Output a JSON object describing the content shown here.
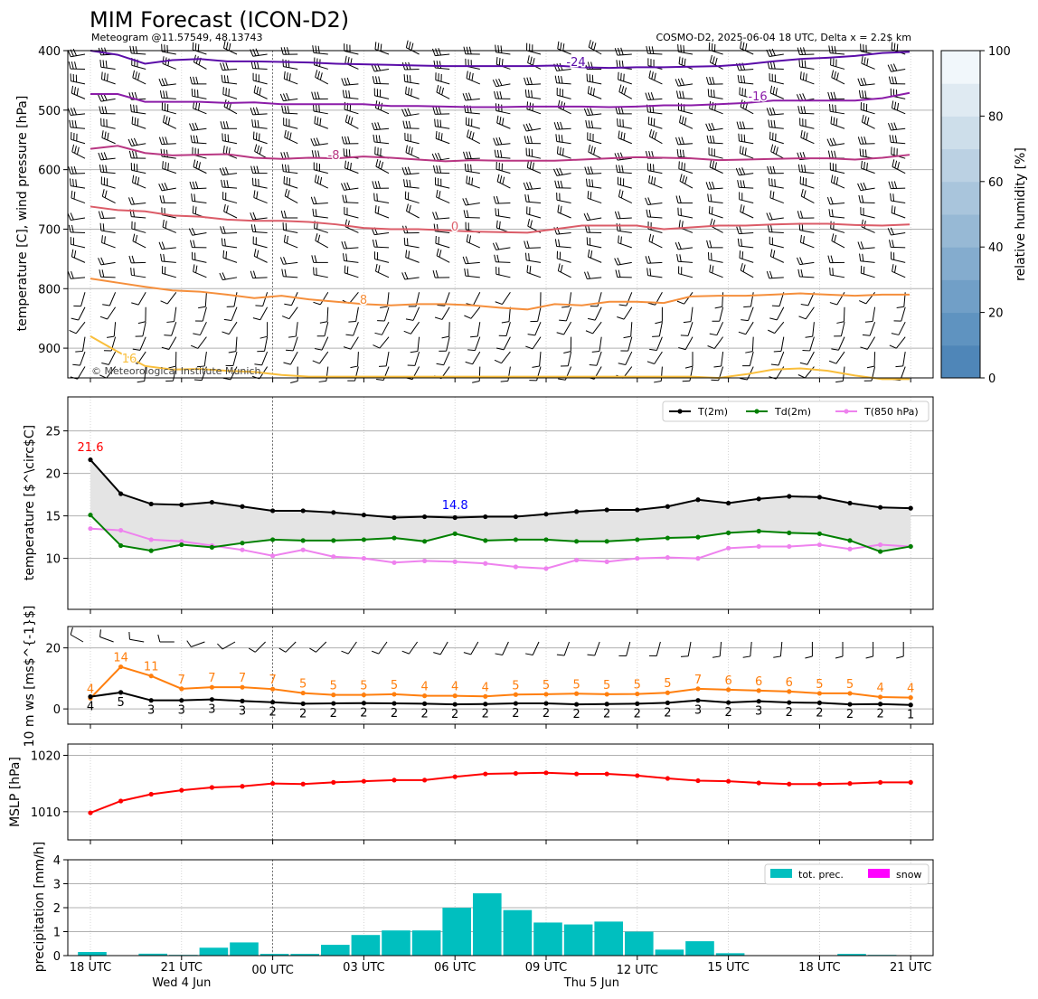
{
  "header": {
    "title": "MIM Forecast (ICON-D2)",
    "subtitle_left": "Meteogram @11.57549, 48.13743",
    "subtitle_right": "COSMO-D2, 2025-06-04 18 UTC, Delta x = 2.2$ km",
    "copyright": "© Meteorological Institute Munich"
  },
  "time_axis": {
    "ticks": [
      "18 UTC",
      "21 UTC",
      "00 UTC",
      "03 UTC",
      "06 UTC",
      "09 UTC",
      "12 UTC",
      "15 UTC",
      "18 UTC",
      "21 UTC"
    ],
    "date_labels": [
      "Wed 4 Jun",
      "Thu 5 Jun"
    ]
  },
  "colors": {
    "t2m": "#000000",
    "td2m": "#008000",
    "t850": "#ee82ee",
    "wind_speed": "#ff7f0e",
    "wind_gust": "#ff7f0e",
    "mslp": "#ff0000",
    "precip": "#00bfbf",
    "snow": "#ff00ff",
    "max_label": "#ff0000",
    "min_label": "#0000ff"
  },
  "chart_data": [
    {
      "type": "line",
      "name": "upper-air",
      "ylabel": "temperature [C], wind pressure [hPa]",
      "y_ticks": [
        "400",
        "500",
        "600",
        "700",
        "800",
        "900"
      ],
      "ylim": [
        950,
        400
      ],
      "isotherm_labels": [
        "-24",
        "-16",
        "-8",
        "0",
        "8",
        "16"
      ],
      "isotherms": [
        {
          "label": "-24",
          "color": "#5a0ca8",
          "values": [
            400,
            407,
            422,
            416,
            414,
            418,
            418,
            419,
            420,
            422,
            423,
            424,
            425,
            426,
            426,
            426,
            426,
            425,
            428,
            429,
            428,
            428,
            427,
            426,
            423,
            418,
            414,
            412,
            409,
            404,
            402
          ]
        },
        {
          "label": "-16",
          "color": "#8b1ca8",
          "values": [
            473,
            473,
            486,
            486,
            486,
            488,
            487,
            490,
            490,
            490,
            490,
            493,
            493,
            494,
            495,
            495,
            494,
            494,
            494,
            495,
            494,
            492,
            492,
            490,
            488,
            484,
            484,
            484,
            484,
            480,
            471
          ]
        },
        {
          "label": "-8",
          "color": "#b83682",
          "values": [
            565,
            560,
            572,
            576,
            575,
            574,
            580,
            582,
            580,
            581,
            578,
            580,
            583,
            586,
            584,
            585,
            585,
            585,
            583,
            581,
            579,
            580,
            581,
            584,
            583,
            582,
            581,
            581,
            583,
            580,
            575
          ]
        },
        {
          "label": "0",
          "color": "#db5c68",
          "values": [
            662,
            668,
            670,
            677,
            679,
            684,
            686,
            686,
            688,
            692,
            698,
            700,
            700,
            702,
            704,
            705,
            706,
            700,
            694,
            694,
            694,
            700,
            697,
            694,
            694,
            692,
            691,
            691,
            693,
            694,
            692
          ]
        },
        {
          "label": "8",
          "color": "#f58f3c",
          "values": [
            783,
            790,
            797,
            803,
            805,
            810,
            816,
            812,
            818,
            822,
            826,
            828,
            826,
            826,
            828,
            832,
            835,
            826,
            828,
            822,
            822,
            824,
            813,
            812,
            812,
            810,
            808,
            810,
            812,
            810,
            810
          ]
        },
        {
          "label": "16",
          "color": "#f9be3b",
          "values": [
            880,
            906,
            930,
            936,
            935,
            938,
            940,
            945,
            948,
            948,
            948,
            948,
            948,
            948,
            948,
            948,
            948,
            948,
            948,
            948,
            948,
            948,
            948,
            950,
            944,
            936,
            934,
            938,
            946,
            952,
            952
          ]
        }
      ],
      "wind_barb_levels": [
        400,
        425,
        450,
        475,
        500,
        525,
        550,
        575,
        600,
        625,
        650,
        675,
        700,
        725,
        750,
        775,
        800,
        825,
        850,
        875,
        900,
        925
      ]
    },
    {
      "type": "line",
      "name": "surface-temperature",
      "ylabel": "temperature [$^\\circ$C]",
      "y_ticks": [
        "10",
        "15",
        "20",
        "25"
      ],
      "ylim": [
        4,
        29
      ],
      "legend_placement": "top-right",
      "max_label": "21.6",
      "min_label": "14.8",
      "series": [
        {
          "name": "T(2m)",
          "color": "#000000",
          "values": [
            21.6,
            17.6,
            16.4,
            16.3,
            16.6,
            16.1,
            15.6,
            15.6,
            15.4,
            15.1,
            14.8,
            14.9,
            14.8,
            14.9,
            14.9,
            15.2,
            15.5,
            15.7,
            15.7,
            16.1,
            16.9,
            16.5,
            17.0,
            17.3,
            17.2,
            16.5,
            16.0,
            15.9
          ]
        },
        {
          "name": "Td(2m)",
          "color": "#008000",
          "values": [
            15.1,
            11.5,
            10.9,
            11.6,
            11.3,
            11.8,
            12.2,
            12.1,
            12.1,
            12.2,
            12.4,
            12.0,
            12.9,
            12.1,
            12.2,
            12.2,
            12.0,
            12.0,
            12.2,
            12.4,
            12.5,
            13.0,
            13.2,
            13.0,
            12.9,
            12.1,
            10.8,
            11.4
          ]
        },
        {
          "name": "T(850 hPa)",
          "color": "#ee82ee",
          "values": [
            13.5,
            13.3,
            12.2,
            12.0,
            11.5,
            11.0,
            10.3,
            11.0,
            10.2,
            10.0,
            9.5,
            9.7,
            9.6,
            9.4,
            9.0,
            8.8,
            9.8,
            9.6,
            10.0,
            10.1,
            10.0,
            11.2,
            11.4,
            11.4,
            11.6,
            11.1,
            11.6,
            11.4
          ]
        }
      ]
    },
    {
      "type": "line",
      "name": "wind",
      "ylabel": "10 m ws [ms$^{-1}$]",
      "y_ticks": [
        "0",
        "20"
      ],
      "ylim": [
        -5,
        27
      ],
      "series": [
        {
          "name": "gust",
          "color": "#ff7f0e",
          "values": [
            3.5,
            13.8,
            10.8,
            6.6,
            7.1,
            7.1,
            6.5,
            5.2,
            4.6,
            4.6,
            4.8,
            4.3,
            4.3,
            4.1,
            4.7,
            4.8,
            5.0,
            4.8,
            4.9,
            5.3,
            6.6,
            6.3,
            6.0,
            5.7,
            5.1,
            5.1,
            3.9,
            3.7
          ]
        },
        {
          "name": "speed",
          "color": "#000000",
          "values": [
            4.0,
            5.4,
            2.8,
            2.8,
            3.1,
            2.6,
            2.2,
            1.7,
            1.8,
            1.9,
            1.8,
            1.7,
            1.5,
            1.6,
            1.8,
            1.8,
            1.5,
            1.6,
            1.7,
            2.0,
            2.8,
            2.1,
            2.5,
            2.1,
            2.0,
            1.5,
            1.6,
            1.3
          ]
        }
      ],
      "gust_labels": [
        "4",
        "14",
        "11",
        "7",
        "7",
        "7",
        "7",
        "5",
        "5",
        "5",
        "5",
        "4",
        "4",
        "4",
        "5",
        "5",
        "5",
        "5",
        "5",
        "5",
        "7",
        "6",
        "6",
        "6",
        "5",
        "5",
        "4",
        "4"
      ],
      "speed_labels": [
        "4",
        "5",
        "3",
        "3",
        "3",
        "3",
        "2",
        "2",
        "2",
        "2",
        "2",
        "2",
        "2",
        "2",
        "2",
        "2",
        "2",
        "2",
        "2",
        "2",
        "3",
        "2",
        "3",
        "2",
        "2",
        "2",
        "2",
        "1"
      ],
      "barb_directions_deg": [
        300,
        290,
        280,
        270,
        250,
        240,
        225,
        225,
        225,
        215,
        215,
        215,
        210,
        210,
        205,
        205,
        200,
        200,
        195,
        195,
        190,
        185,
        185,
        185,
        180,
        180,
        180,
        180
      ]
    },
    {
      "type": "line",
      "name": "mslp",
      "ylabel": "MSLP [hPa]",
      "y_ticks": [
        "1010",
        "1020"
      ],
      "ylim": [
        1005,
        1022
      ],
      "series": [
        {
          "name": "MSLP",
          "color": "#ff0000",
          "values": [
            1009.8,
            1011.9,
            1013.1,
            1013.8,
            1014.3,
            1014.5,
            1015.0,
            1014.9,
            1015.2,
            1015.4,
            1015.6,
            1015.6,
            1016.2,
            1016.7,
            1016.8,
            1016.9,
            1016.7,
            1016.7,
            1016.4,
            1015.9,
            1015.5,
            1015.4,
            1015.1,
            1014.9,
            1014.9,
            1015.0,
            1015.2,
            1015.2
          ]
        }
      ]
    },
    {
      "type": "bar",
      "name": "precipitation",
      "ylabel": "precipitation [mm/h]",
      "y_ticks": [
        "0",
        "1",
        "2",
        "3",
        "4"
      ],
      "ylim": [
        0,
        4
      ],
      "legend_placement": "top-right",
      "series": [
        {
          "name": "tot. prec.",
          "color": "#00bfbf",
          "values": [
            0.15,
            0,
            0.08,
            0.03,
            0.33,
            0.55,
            0.07,
            0.07,
            0.45,
            0.86,
            1.05,
            1.05,
            2.0,
            2.6,
            1.9,
            1.38,
            1.3,
            1.42,
            1.0,
            0.25,
            0.6,
            0.1,
            0,
            0,
            0,
            0.07,
            0.03
          ]
        },
        {
          "name": "snow",
          "color": "#ff00ff",
          "values": [
            0,
            0,
            0,
            0,
            0,
            0,
            0,
            0,
            0,
            0,
            0,
            0,
            0,
            0,
            0,
            0,
            0,
            0,
            0,
            0,
            0,
            0,
            0,
            0,
            0,
            0,
            0
          ]
        }
      ]
    }
  ],
  "colorbar": {
    "label": "relative humidity [%]",
    "ticks": [
      "0",
      "20",
      "40",
      "60",
      "80",
      "100"
    ],
    "colors": [
      "#4f86b8",
      "#5f93c0",
      "#719fc7",
      "#84acce",
      "#97b9d5",
      "#a9c5dc",
      "#bbd1e3",
      "#cddeea",
      "#dfeaf2",
      "#f1f7fb"
    ]
  }
}
